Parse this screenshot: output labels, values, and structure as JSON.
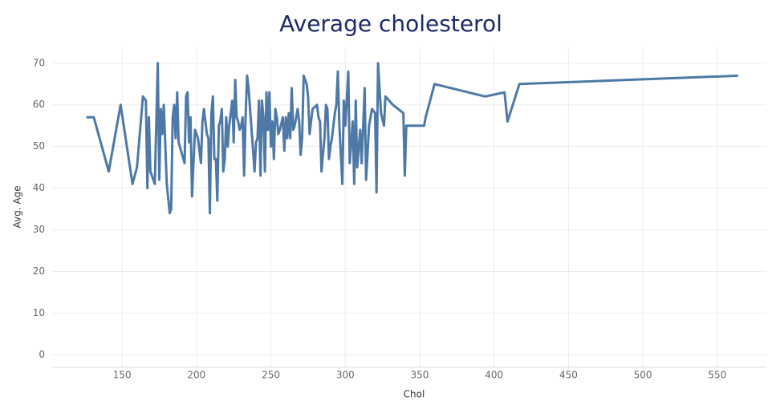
{
  "chart_data": {
    "type": "line",
    "title": "Average cholesterol",
    "x_label": "Chol",
    "y_label": "Avg. Age",
    "x": [
      126,
      131,
      141,
      149,
      157,
      160,
      164,
      166,
      167,
      168,
      169,
      172,
      174,
      175,
      176,
      177,
      178,
      180,
      182,
      183,
      184,
      185,
      186,
      187,
      188,
      192,
      193,
      194,
      195,
      196,
      197,
      198,
      199,
      201,
      203,
      204,
      205,
      207,
      208,
      209,
      210,
      211,
      212,
      213,
      214,
      215,
      216,
      217,
      218,
      219,
      220,
      221,
      222,
      223,
      224,
      225,
      226,
      227,
      228,
      229,
      230,
      231,
      232,
      233,
      234,
      235,
      236,
      237,
      239,
      240,
      241,
      242,
      243,
      244,
      245,
      246,
      247,
      248,
      249,
      250,
      251,
      252,
      253,
      254,
      255,
      256,
      258,
      259,
      260,
      261,
      262,
      263,
      264,
      265,
      266,
      267,
      268,
      269,
      270,
      271,
      272,
      274,
      275,
      276,
      277,
      278,
      281,
      282,
      283,
      284,
      286,
      287,
      288,
      289,
      290,
      291,
      293,
      294,
      295,
      296,
      298,
      299,
      300,
      302,
      303,
      305,
      306,
      307,
      308,
      310,
      311,
      313,
      314,
      316,
      318,
      320,
      321,
      322,
      324,
      326,
      327,
      332,
      339,
      340,
      341,
      353,
      354,
      360,
      394,
      407,
      409,
      417,
      564
    ],
    "series": [
      {
        "name": "Avg. Age",
        "color": "#4e79a7",
        "values": [
          57,
          57,
          44,
          60,
          41,
          45,
          62,
          61,
          40,
          57,
          44,
          41,
          70,
          42,
          59,
          53,
          60,
          41,
          34,
          35,
          57,
          60,
          52,
          63,
          51,
          46,
          62,
          63,
          51,
          57,
          38,
          46,
          54,
          52,
          46,
          56,
          59,
          53,
          52,
          34,
          58,
          62,
          47,
          47,
          37,
          55,
          56,
          59,
          44,
          47,
          57,
          50,
          55,
          58,
          61,
          51,
          66,
          57,
          56,
          54,
          55,
          57,
          43,
          57,
          67,
          64,
          59,
          54,
          44,
          51,
          52,
          61,
          43,
          61,
          57,
          44,
          63,
          54,
          63,
          50,
          56,
          47,
          59,
          57,
          53,
          54,
          57,
          49,
          57,
          52,
          58,
          52,
          64,
          54,
          55,
          57,
          59,
          56,
          48,
          52,
          67,
          65,
          62,
          53,
          56,
          59,
          60,
          57,
          56,
          44,
          52,
          60,
          59,
          47,
          50,
          52,
          58,
          60,
          68,
          55,
          41,
          61,
          55,
          68,
          46,
          56,
          41,
          61,
          45,
          54,
          46,
          64,
          42,
          55,
          59,
          58,
          39,
          70,
          58,
          55,
          62,
          60,
          58,
          43,
          55,
          55,
          57,
          65,
          62,
          63,
          56,
          65,
          67
        ]
      }
    ],
    "xlim": [
      103,
      583
    ],
    "ylim": [
      -3,
      74
    ],
    "xticks": [
      150,
      200,
      250,
      300,
      350,
      400,
      450,
      500,
      550
    ],
    "yticks": [
      0,
      10,
      20,
      30,
      40,
      50,
      60,
      70
    ],
    "grid": true
  }
}
